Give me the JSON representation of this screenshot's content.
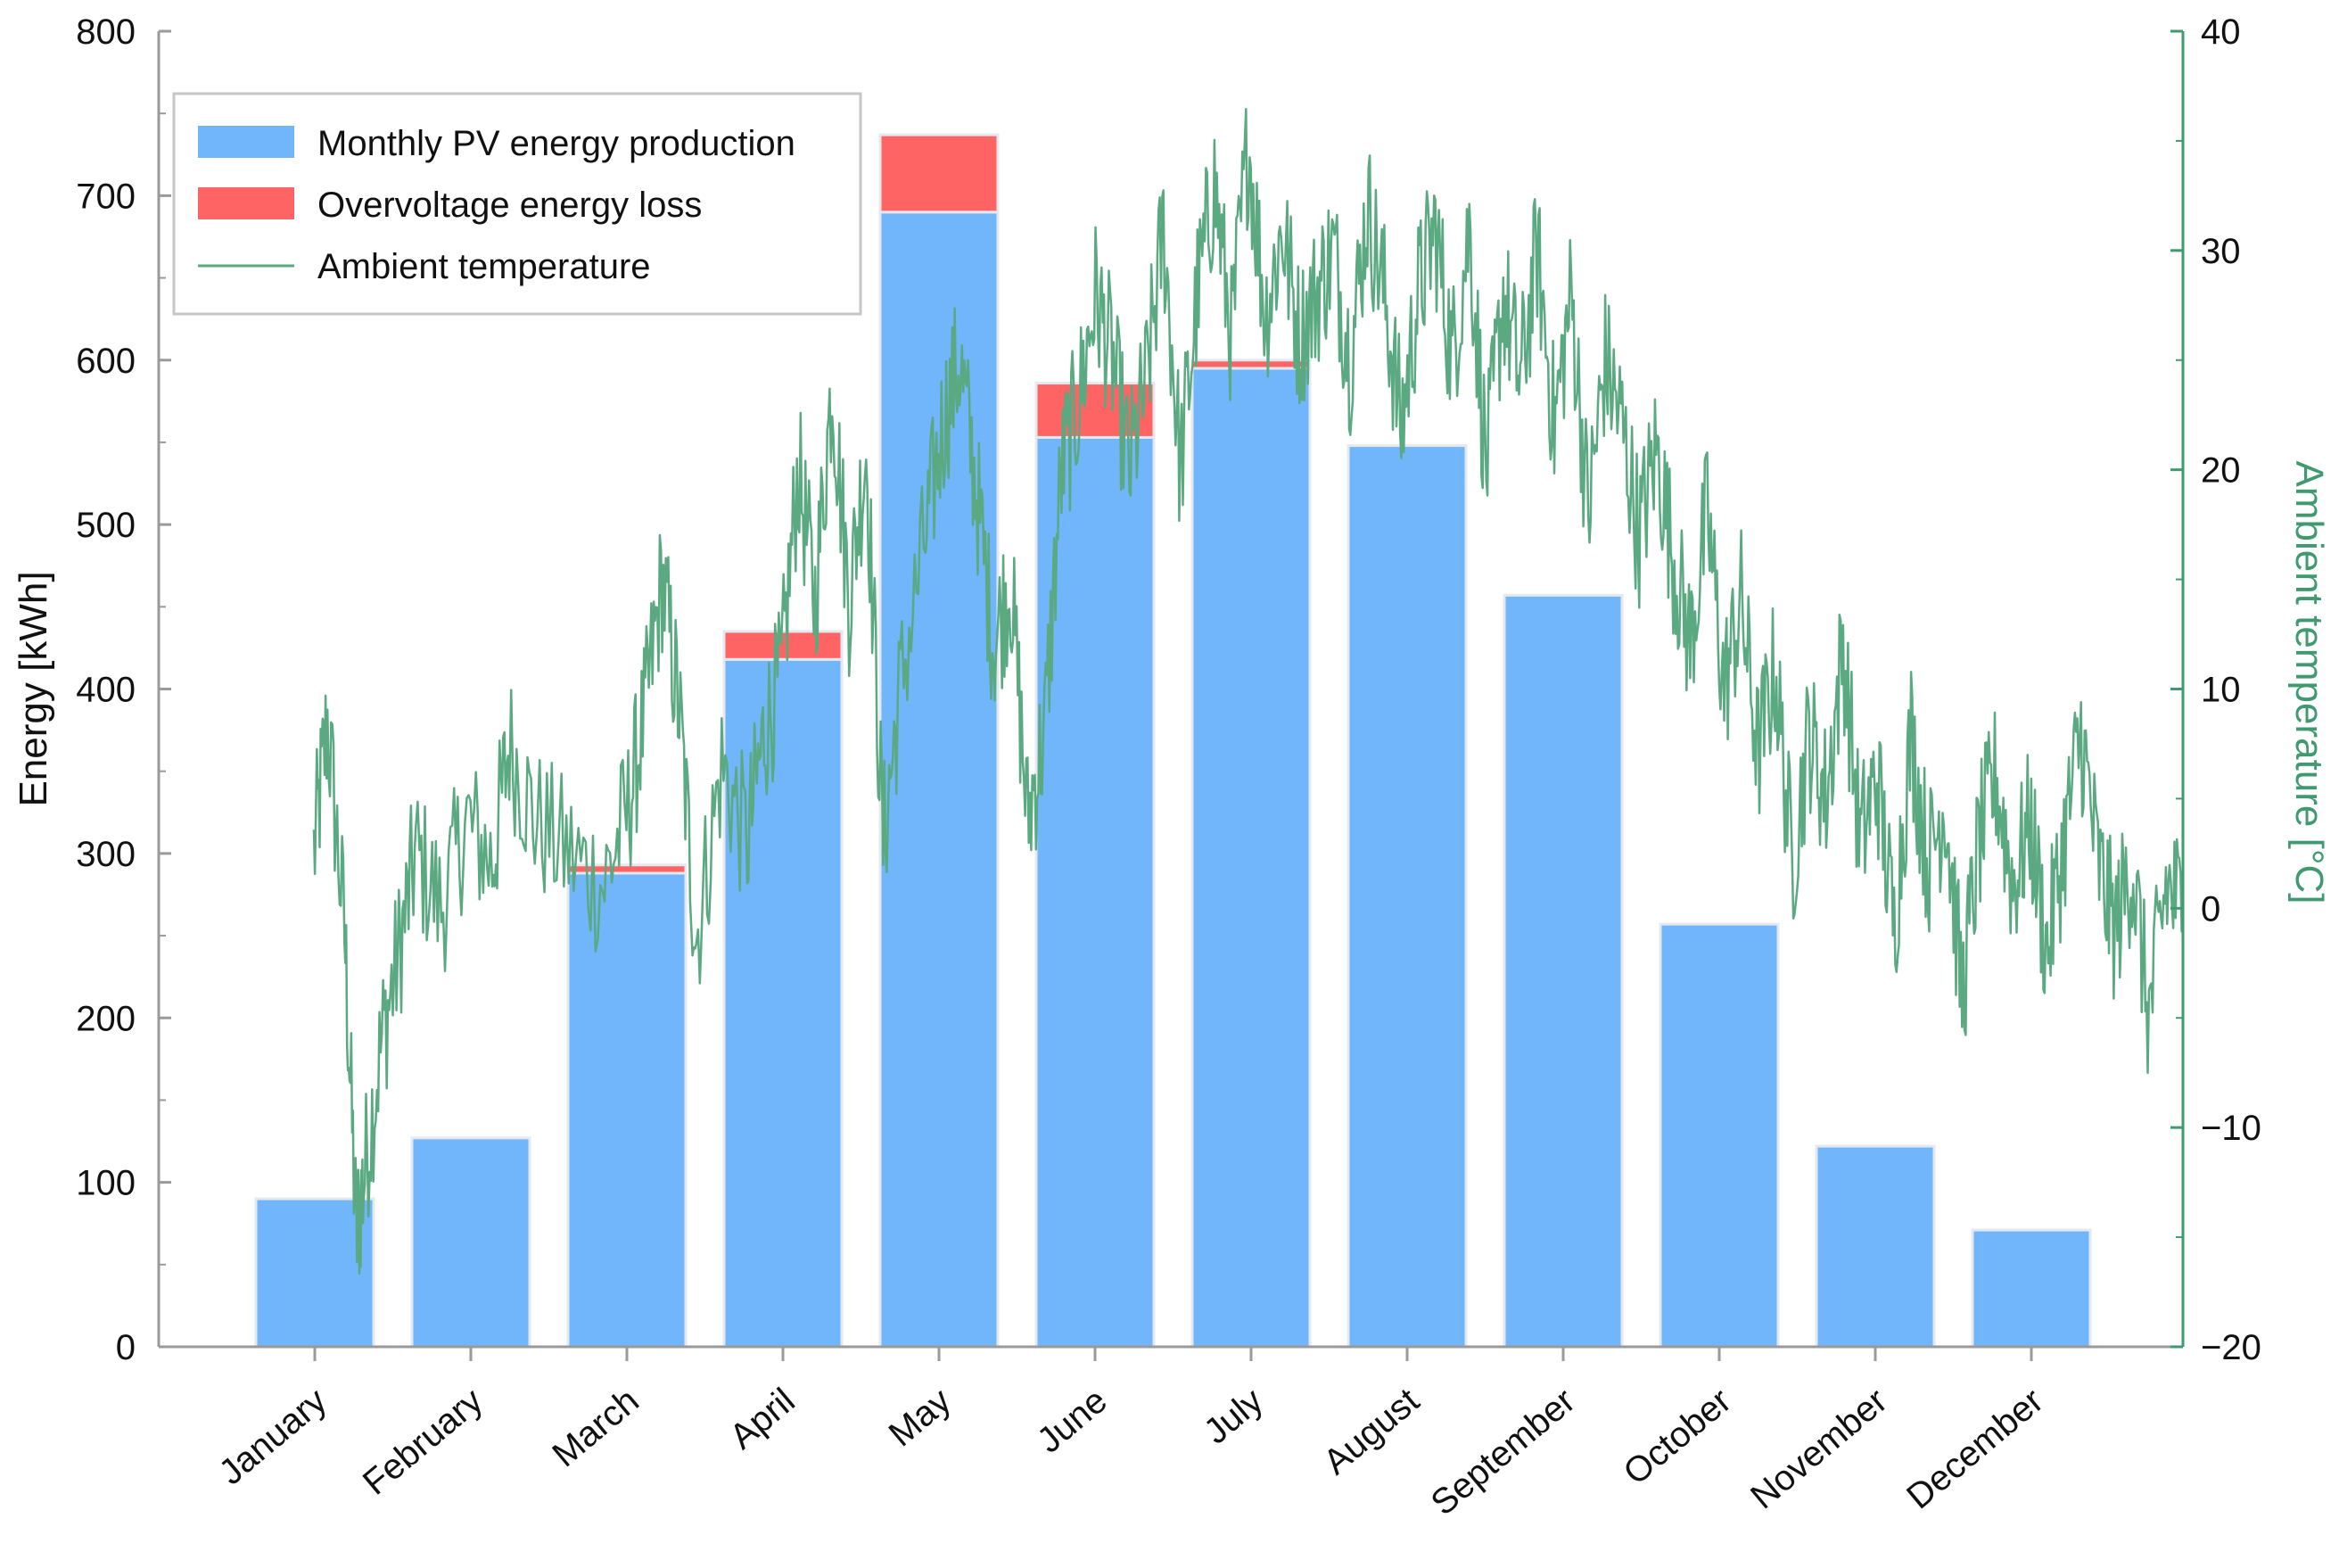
{
  "chart_data": {
    "type": "bar",
    "categories": [
      "January",
      "February",
      "March",
      "April",
      "May",
      "June",
      "July",
      "August",
      "September",
      "October",
      "November",
      "December"
    ],
    "series": [
      {
        "name": "Monthly PV energy production",
        "values": [
          90,
          127,
          288,
          418,
          690,
          553,
          595,
          548,
          457,
          257,
          122,
          71
        ]
      },
      {
        "name": "Overvoltage energy loss",
        "values": [
          0,
          0,
          5,
          17,
          47,
          33,
          5,
          0,
          0,
          0,
          0,
          0
        ]
      },
      {
        "name": "Ambient temperature",
        "axis": "right",
        "points": [
          [
            0.0,
            2.5
          ],
          [
            0.08,
            8.5
          ],
          [
            0.18,
            -1.0
          ],
          [
            0.25,
            -15.0
          ],
          [
            0.3,
            -12.0
          ],
          [
            0.4,
            -6.0
          ],
          [
            0.5,
            -2.0
          ],
          [
            0.6,
            2.5
          ],
          [
            0.75,
            0.0
          ],
          [
            0.9,
            4.0
          ],
          [
            1.05,
            2.0
          ],
          [
            1.15,
            7.5
          ],
          [
            1.3,
            4.0
          ],
          [
            1.5,
            2.5
          ],
          [
            1.7,
            1.0
          ],
          [
            1.85,
            4.5
          ],
          [
            1.95,
            9.0
          ],
          [
            2.05,
            15.0
          ],
          [
            2.15,
            9.0
          ],
          [
            2.25,
            -1.5
          ],
          [
            2.4,
            6.5
          ],
          [
            2.55,
            3.0
          ],
          [
            2.65,
            8.0
          ],
          [
            2.75,
            10.5
          ],
          [
            2.85,
            20.0
          ],
          [
            2.95,
            14.0
          ],
          [
            3.05,
            24.0
          ],
          [
            3.15,
            14.0
          ],
          [
            3.25,
            21.0
          ],
          [
            3.35,
            3.0
          ],
          [
            3.45,
            10.0
          ],
          [
            3.6,
            17.0
          ],
          [
            3.7,
            22.0
          ],
          [
            3.8,
            25.0
          ],
          [
            3.9,
            19.0
          ],
          [
            4.0,
            12.0
          ],
          [
            4.1,
            15.0
          ],
          [
            4.2,
            4.0
          ],
          [
            4.3,
            8.0
          ],
          [
            4.4,
            20.0
          ],
          [
            4.5,
            23.0
          ],
          [
            4.6,
            28.0
          ],
          [
            4.7,
            25.0
          ],
          [
            4.8,
            20.0
          ],
          [
            4.9,
            24.0
          ],
          [
            5.0,
            31.0
          ],
          [
            5.1,
            20.0
          ],
          [
            5.2,
            28.0
          ],
          [
            5.3,
            33.0
          ],
          [
            5.4,
            26.0
          ],
          [
            5.5,
            35.0
          ],
          [
            5.6,
            27.0
          ],
          [
            5.7,
            31.0
          ],
          [
            5.8,
            26.0
          ],
          [
            5.9,
            28.0
          ],
          [
            6.0,
            30.0
          ],
          [
            6.1,
            25.0
          ],
          [
            6.2,
            32.0
          ],
          [
            6.3,
            28.0
          ],
          [
            6.4,
            22.0
          ],
          [
            6.5,
            28.0
          ],
          [
            6.6,
            31.0
          ],
          [
            6.7,
            25.0
          ],
          [
            6.8,
            31.0
          ],
          [
            6.9,
            20.0
          ],
          [
            7.0,
            28.0
          ],
          [
            7.1,
            24.0
          ],
          [
            7.2,
            30.0
          ],
          [
            7.3,
            22.0
          ],
          [
            7.4,
            28.0
          ],
          [
            7.5,
            18.0
          ],
          [
            7.6,
            25.0
          ],
          [
            7.7,
            22.0
          ],
          [
            7.8,
            17.0
          ],
          [
            7.9,
            21.0
          ],
          [
            8.0,
            16.0
          ],
          [
            8.1,
            12.0
          ],
          [
            8.2,
            18.0
          ],
          [
            8.3,
            10.0
          ],
          [
            8.4,
            14.0
          ],
          [
            8.5,
            7.0
          ],
          [
            8.6,
            11.0
          ],
          [
            8.7,
            2.0
          ],
          [
            8.8,
            8.0
          ],
          [
            8.9,
            5.0
          ],
          [
            9.0,
            12.0
          ],
          [
            9.1,
            3.0
          ],
          [
            9.2,
            6.0
          ],
          [
            9.3,
            -1.0
          ],
          [
            9.4,
            8.0
          ],
          [
            9.5,
            2.0
          ],
          [
            9.6,
            5.0
          ],
          [
            9.7,
            -4.0
          ],
          [
            9.8,
            3.0
          ],
          [
            9.9,
            6.0
          ],
          [
            10.0,
            1.0
          ],
          [
            10.1,
            4.0
          ],
          [
            10.2,
            -2.0
          ],
          [
            10.3,
            3.0
          ],
          [
            10.4,
            8.0
          ],
          [
            10.5,
            2.0
          ],
          [
            10.6,
            -1.0
          ],
          [
            10.7,
            2.0
          ],
          [
            10.8,
            -5.0
          ],
          [
            10.9,
            1.0
          ],
          [
            11.0,
            0.0
          ]
        ]
      }
    ],
    "left_axis": {
      "label": "Energy  [kWh]",
      "ylim": [
        0,
        800
      ],
      "ticks": [
        0,
        100,
        200,
        300,
        400,
        500,
        600,
        700,
        800
      ]
    },
    "right_axis": {
      "label": "Ambient temperature  [°C]",
      "ylim": [
        -20,
        40
      ],
      "ticks": [
        -20,
        -10,
        0,
        10,
        20,
        30,
        40
      ]
    },
    "legend": {
      "position": "top-left",
      "entries": [
        "Monthly PV energy production",
        "Overvoltage energy loss",
        "Ambient temperature"
      ]
    },
    "grid": false
  },
  "colors": {
    "production": "#71b5fb",
    "production_edge": "#e4e8ef",
    "loss": "#ff6464",
    "temperature": "#5aa981",
    "axis": "#9a9a9a",
    "right_axis": "#3f9a6f"
  }
}
